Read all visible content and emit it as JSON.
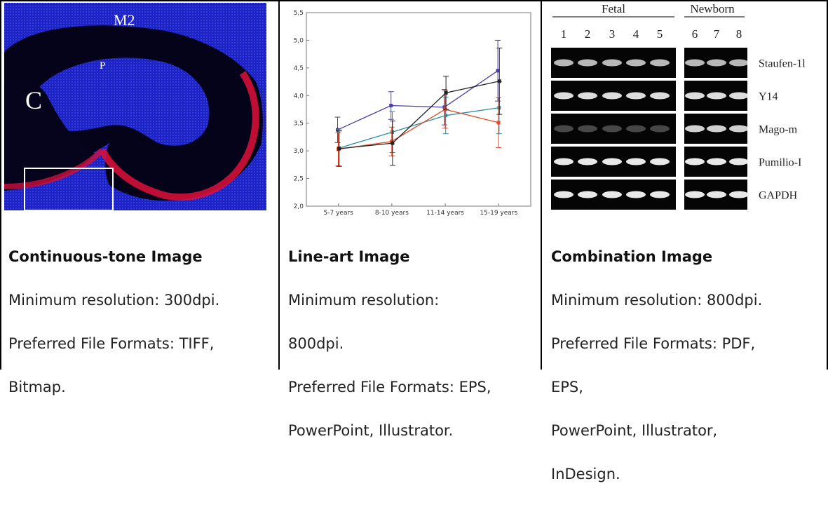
{
  "columns": [
    {
      "heading": "Continuous-tone Image",
      "lines": [
        "Minimum resolution: 300dpi.",
        "Preferred File Formats: TIFF,",
        "Bitmap."
      ]
    },
    {
      "heading": "Line-art Image",
      "lines": [
        "Minimum resolution:",
        "800dpi.",
        "Preferred File Formats: EPS,",
        "PowerPoint, Illustrator."
      ]
    },
    {
      "heading": "Combination Image",
      "lines": [
        "Minimum resolution: 800dpi.",
        "Preferred File Formats: PDF,",
        "EPS,",
        "PowerPoint, Illustrator,",
        "InDesign."
      ]
    }
  ],
  "micrograph": {
    "labels": {
      "top": "M2",
      "inner": "P",
      "left": "C"
    }
  },
  "gel": {
    "group_labels": [
      "Fetal",
      "Newborn"
    ],
    "lane_numbers": [
      "1",
      "2",
      "3",
      "4",
      "5",
      "6",
      "7",
      "8"
    ],
    "rows": [
      "Staufen-1l",
      "Y14",
      "Mago-m",
      "Pumilio-I",
      "GAPDH"
    ],
    "row_intensity": [
      0.75,
      0.9,
      0.28,
      0.95,
      0.95
    ]
  },
  "chart_data": {
    "type": "line",
    "categories": [
      "5-7 years",
      "8-10 years",
      "11-14 years",
      "15-19 years"
    ],
    "ylim": [
      2.0,
      5.5
    ],
    "yticks": [
      "2,0",
      "2,5",
      "3,0",
      "3,5",
      "4,0",
      "4,5",
      "5,0",
      "5,5"
    ],
    "grid": false,
    "series": [
      {
        "color": "#4a3fa8",
        "values": [
          3.38,
          3.82,
          3.79,
          4.45
        ],
        "err": [
          0.23,
          0.25,
          0.32,
          0.55
        ]
      },
      {
        "color": "#2a8fa0",
        "values": [
          3.05,
          3.34,
          3.64,
          3.78
        ],
        "err": [
          0.33,
          0.37,
          0.33,
          0.47
        ]
      },
      {
        "color": "#e04a2a",
        "values": [
          3.03,
          3.17,
          3.75,
          3.51
        ],
        "err": [
          0.3,
          0.26,
          0.34,
          0.45
        ]
      },
      {
        "color": "#222222",
        "values": [
          3.04,
          3.14,
          4.05,
          4.26
        ],
        "err": [
          0.32,
          0.4,
          0.3,
          0.6
        ]
      }
    ]
  }
}
